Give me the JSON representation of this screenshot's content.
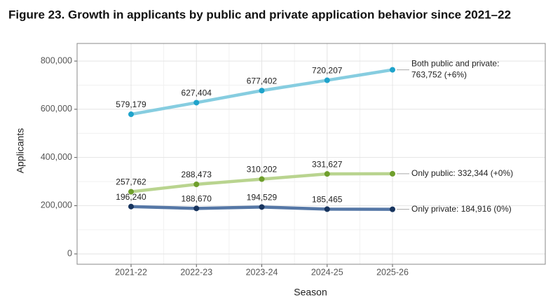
{
  "chart_data": {
    "type": "line",
    "title": "Figure 23. Growth in applicants by public and private application behavior since 2021–22",
    "x_label": "Season",
    "y_label": "Applicants",
    "categories": [
      "2021-22",
      "2022-23",
      "2023-24",
      "2024-25",
      "2025-26"
    ],
    "series": [
      {
        "name": "Both public and private",
        "line_color": "#86cde0",
        "color": "#1fa3cb",
        "values": [
          579179,
          627404,
          677402,
          720207,
          763752
        ],
        "value_labels": [
          "579,179",
          "627,404",
          "677,402",
          "720,207",
          "763,752 (+6%)"
        ],
        "end_heading": "Both public and private:"
      },
      {
        "name": "Only public",
        "line_color": "#b9d48f",
        "color": "#6f9f2c",
        "values": [
          257762,
          288473,
          310202,
          331627,
          332344
        ],
        "value_labels": [
          "257,762",
          "288,473",
          "310,202",
          "331,627",
          "Only public: 332,344 (+0%)"
        ]
      },
      {
        "name": "Only private",
        "line_color": "#5577a6",
        "color": "#17345e",
        "values": [
          196240,
          188670,
          194529,
          185465,
          184916
        ],
        "value_labels": [
          "196,240",
          "188,670",
          "194,529",
          "185,465",
          "Only private: 184,916 (0%)"
        ]
      }
    ],
    "ylim": [
      -43000,
      873000
    ],
    "yticks": [
      0,
      {
        "value": 200000,
        "label": "200,000"
      },
      {
        "value": 400000,
        "label": "400,000"
      },
      {
        "value": 600000,
        "label": "600,000"
      },
      {
        "value": 800000,
        "label": "800,000"
      }
    ],
    "grid": true
  }
}
